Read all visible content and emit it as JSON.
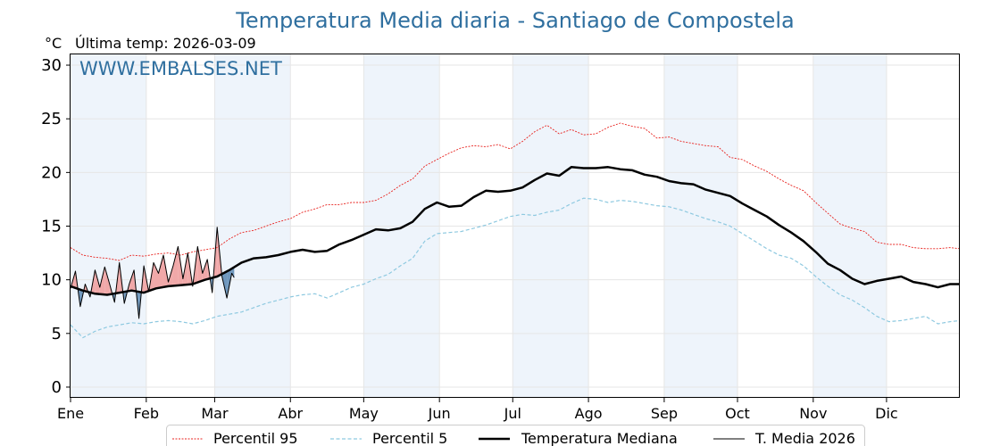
{
  "title": "Temperatura Media diaria - Santiago de Compostela",
  "unit_label": "°C",
  "subtitle": "Última temp: 2026-03-09",
  "watermark": "WWW.EMBALSES.NET",
  "colors": {
    "title": "#2f6f9f",
    "p95": "#e8231f",
    "p5": "#8ec9e0",
    "median": "#000000",
    "current": "#000000",
    "above_fill": "#f0a8a8",
    "below_fill": "#6f97bd",
    "band": "#eef4fb",
    "grid": "#e6e6e6"
  },
  "chart_data": {
    "type": "line",
    "xlabel": "",
    "ylabel": "°C",
    "xlim": [
      1,
      365
    ],
    "ylim": [
      -1,
      31
    ],
    "yticks": [
      0,
      5,
      10,
      15,
      20,
      25,
      30
    ],
    "months": [
      "Ene",
      "Feb",
      "Mar",
      "Abr",
      "May",
      "Jun",
      "Jul",
      "Ago",
      "Sep",
      "Oct",
      "Nov",
      "Dic"
    ],
    "month_start_days": [
      1,
      32,
      60,
      91,
      121,
      152,
      182,
      213,
      244,
      274,
      305,
      335
    ],
    "shaded_months": [
      "Ene",
      "Mar",
      "May",
      "Jul",
      "Sep",
      "Nov"
    ],
    "grid": true,
    "legend_position": "bottom",
    "series": [
      {
        "name": "Percentil 95",
        "style": "dotted",
        "x": [
          1,
          6,
          11,
          16,
          21,
          26,
          31,
          36,
          41,
          46,
          51,
          56,
          61,
          66,
          71,
          76,
          81,
          86,
          91,
          96,
          101,
          106,
          111,
          116,
          121,
          126,
          131,
          136,
          141,
          146,
          151,
          156,
          161,
          166,
          171,
          176,
          181,
          186,
          191,
          196,
          201,
          206,
          211,
          216,
          221,
          226,
          231,
          236,
          241,
          246,
          251,
          256,
          261,
          266,
          271,
          276,
          281,
          286,
          291,
          296,
          301,
          306,
          311,
          316,
          321,
          326,
          331,
          336,
          341,
          346,
          351,
          356,
          361,
          365
        ],
        "values": [
          13,
          12.3,
          12.1,
          12,
          11.8,
          12.3,
          12.2,
          12.4,
          12.5,
          12.3,
          12.6,
          12.8,
          13,
          13.8,
          14.4,
          14.6,
          15,
          15.4,
          15.7,
          16.3,
          16.6,
          17,
          17,
          17.2,
          17.2,
          17.4,
          18,
          18.8,
          19.4,
          20.6,
          21.2,
          21.8,
          22.3,
          22.5,
          22.4,
          22.6,
          22.2,
          22.9,
          23.8,
          24.4,
          23.6,
          24,
          23.5,
          23.6,
          24.2,
          24.6,
          24.3,
          24.1,
          23.2,
          23.3,
          22.9,
          22.7,
          22.5,
          22.4,
          21.4,
          21.2,
          20.6,
          20.1,
          19.4,
          18.8,
          18.3,
          17.2,
          16.2,
          15.2,
          14.8,
          14.5,
          13.5,
          13.3,
          13.3,
          13,
          12.9,
          12.9,
          13,
          12.9
        ]
      },
      {
        "name": "Percentil 5",
        "style": "dashed",
        "x": [
          1,
          6,
          11,
          16,
          21,
          26,
          31,
          36,
          41,
          46,
          51,
          56,
          61,
          66,
          71,
          76,
          81,
          86,
          91,
          96,
          101,
          106,
          111,
          116,
          121,
          126,
          131,
          136,
          141,
          146,
          151,
          156,
          161,
          166,
          171,
          176,
          181,
          186,
          191,
          196,
          201,
          206,
          211,
          216,
          221,
          226,
          231,
          236,
          241,
          246,
          251,
          256,
          261,
          266,
          271,
          276,
          281,
          286,
          291,
          296,
          301,
          306,
          311,
          316,
          321,
          326,
          331,
          336,
          341,
          346,
          351,
          356,
          361,
          365
        ],
        "values": [
          5.8,
          4.6,
          5.2,
          5.6,
          5.8,
          6,
          5.9,
          6.1,
          6.2,
          6.1,
          5.9,
          6.2,
          6.6,
          6.8,
          7,
          7.4,
          7.8,
          8.1,
          8.4,
          8.6,
          8.7,
          8.3,
          8.8,
          9.3,
          9.6,
          10.1,
          10.5,
          11.3,
          12,
          13.6,
          14.3,
          14.4,
          14.5,
          14.8,
          15.1,
          15.5,
          15.9,
          16.1,
          16,
          16.3,
          16.5,
          17.1,
          17.6,
          17.5,
          17.2,
          17.4,
          17.3,
          17.1,
          16.9,
          16.8,
          16.5,
          16.1,
          15.7,
          15.4,
          15,
          14.3,
          13.6,
          12.9,
          12.3,
          12,
          11.3,
          10.3,
          9.4,
          8.6,
          8.1,
          7.4,
          6.6,
          6.1,
          6.2,
          6.4,
          6.6,
          5.9,
          6.1,
          6.2
        ]
      },
      {
        "name": "Temperatura Mediana",
        "style": "solid-thick",
        "x": [
          1,
          6,
          11,
          16,
          21,
          26,
          31,
          36,
          41,
          46,
          51,
          56,
          61,
          66,
          71,
          76,
          81,
          86,
          91,
          96,
          101,
          106,
          111,
          116,
          121,
          126,
          131,
          136,
          141,
          146,
          151,
          156,
          161,
          166,
          171,
          176,
          181,
          186,
          191,
          196,
          201,
          206,
          211,
          216,
          221,
          226,
          231,
          236,
          241,
          246,
          251,
          256,
          261,
          266,
          271,
          276,
          281,
          286,
          291,
          296,
          301,
          306,
          311,
          316,
          321,
          326,
          331,
          336,
          341,
          346,
          351,
          356,
          361,
          365
        ],
        "values": [
          9.4,
          9,
          8.7,
          8.6,
          8.8,
          9,
          8.8,
          9.2,
          9.4,
          9.5,
          9.6,
          10,
          10.3,
          10.9,
          11.6,
          12,
          12.1,
          12.3,
          12.6,
          12.8,
          12.6,
          12.7,
          13.3,
          13.7,
          14.2,
          14.7,
          14.6,
          14.8,
          15.4,
          16.6,
          17.2,
          16.8,
          16.9,
          17.7,
          18.3,
          18.2,
          18.3,
          18.6,
          19.3,
          19.9,
          19.7,
          20.5,
          20.4,
          20.4,
          20.5,
          20.3,
          20.2,
          19.8,
          19.6,
          19.2,
          19,
          18.9,
          18.4,
          18.1,
          17.8,
          17.1,
          16.5,
          15.9,
          15.1,
          14.4,
          13.6,
          12.6,
          11.5,
          10.9,
          10.1,
          9.6,
          9.9,
          10.1,
          10.3,
          9.8,
          9.6,
          9.3,
          9.6,
          9.6
        ]
      },
      {
        "name": "T. Media 2026",
        "style": "solid-thin",
        "x": [
          1,
          3,
          5,
          7,
          9,
          11,
          13,
          15,
          17,
          19,
          21,
          23,
          25,
          27,
          29,
          31,
          33,
          35,
          37,
          39,
          41,
          43,
          45,
          47,
          49,
          51,
          53,
          55,
          57,
          59,
          61,
          63,
          65,
          67,
          68
        ],
        "values": [
          9.2,
          10.8,
          7.5,
          9.6,
          8.4,
          10.9,
          9.3,
          11.2,
          9.6,
          7.9,
          11.6,
          7.8,
          9.6,
          10.9,
          6.4,
          11.3,
          8.9,
          11.6,
          10.6,
          12.3,
          9.8,
          11.3,
          13.1,
          10.1,
          12.5,
          9.4,
          13.1,
          10.6,
          11.9,
          8.8,
          14.9,
          10.3,
          8.3,
          10.6,
          10.2
        ]
      }
    ]
  }
}
